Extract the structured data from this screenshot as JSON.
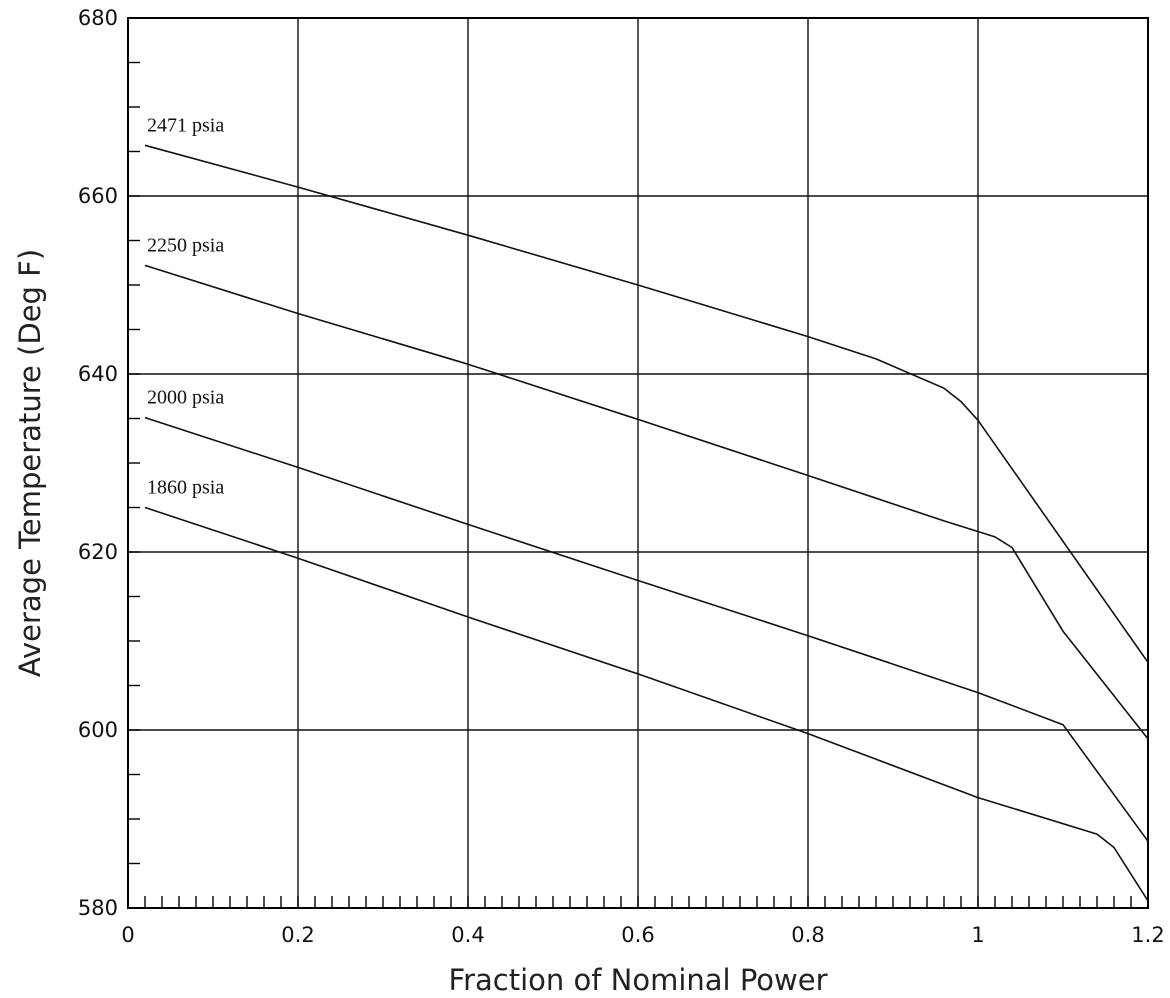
{
  "chart_data": {
    "type": "line",
    "title": "",
    "xlabel": "Fraction of Nominal Power",
    "ylabel": "Average Temperature (Deg F)",
    "xlim": [
      0,
      1.2
    ],
    "ylim": [
      580,
      680
    ],
    "xticks": [
      0,
      0.2,
      0.4,
      0.6,
      0.8,
      1,
      1.2
    ],
    "xtick_labels": [
      "0",
      "0.2",
      "0.4",
      "0.6",
      "0.8",
      "1",
      "1.2"
    ],
    "yticks": [
      580,
      600,
      620,
      640,
      660,
      680
    ],
    "ytick_labels": [
      "580",
      "600",
      "620",
      "640",
      "660",
      "680"
    ],
    "x_minor_step": 0.02,
    "y_minor_step": 5,
    "grid": true,
    "legend": "none",
    "series": [
      {
        "name": "2471 psia",
        "x": [
          0.02,
          0.2,
          0.4,
          0.6,
          0.8,
          0.88,
          0.96,
          0.98,
          1.0,
          1.2
        ],
        "y": [
          665.7,
          661.0,
          655.6,
          650.0,
          644.2,
          641.7,
          638.4,
          636.9,
          634.8,
          607.6
        ]
      },
      {
        "name": "2250 psia",
        "x": [
          0.02,
          0.2,
          0.4,
          0.6,
          0.8,
          0.96,
          1.02,
          1.04,
          1.1,
          1.2
        ],
        "y": [
          652.2,
          646.8,
          641.1,
          634.9,
          628.6,
          623.5,
          621.7,
          620.5,
          611.1,
          599.0
        ]
      },
      {
        "name": "2000 psia",
        "x": [
          0.02,
          0.2,
          0.4,
          0.6,
          0.8,
          1.0,
          1.1,
          1.2
        ],
        "y": [
          635.1,
          629.5,
          623.1,
          616.8,
          610.6,
          604.2,
          600.6,
          587.5
        ]
      },
      {
        "name": "1860 psia",
        "x": [
          0.02,
          0.2,
          0.4,
          0.6,
          0.8,
          1.0,
          1.14,
          1.16,
          1.2
        ],
        "y": [
          625.0,
          619.3,
          612.7,
          606.3,
          599.6,
          592.4,
          588.3,
          586.8,
          580.8
        ]
      }
    ]
  }
}
